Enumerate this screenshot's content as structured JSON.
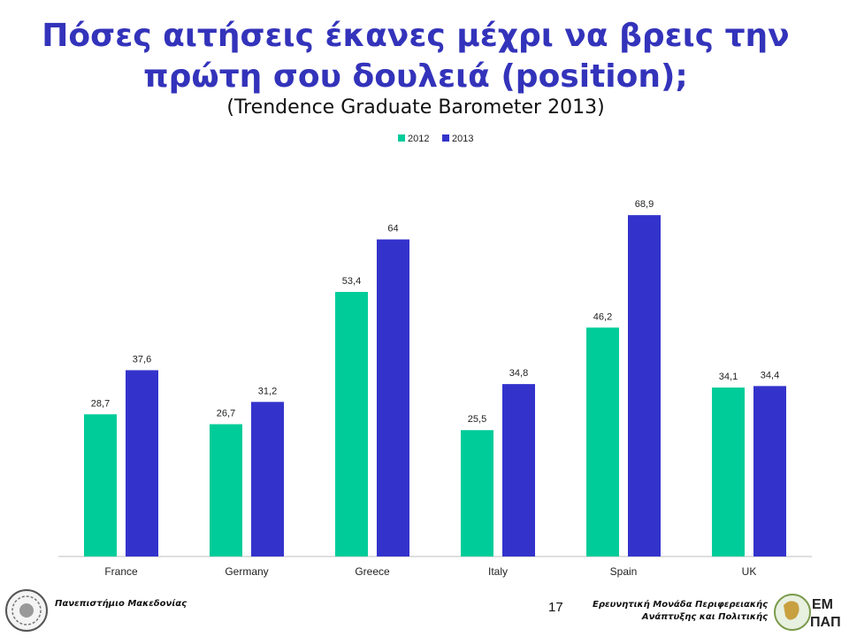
{
  "slide": {
    "title_line1": "Πόσες αιτήσεις έκανες μέχρι να βρεις την",
    "title_line2": "πρώτη σου δουλειά (position);",
    "subtitle": "(Trendence Graduate Barometer 2013)",
    "page_number": "17",
    "footer_left": "Πανεπιστήμιο Μακεδονίας",
    "footer_right_line1": "Ερευνητική Μονάδα Περιφερειακής",
    "footer_right_line2": "Ανάπτυξης και Πολιτικής",
    "logo_text": "ΕΜ ΠΑΠ"
  },
  "chart_data": {
    "type": "bar",
    "categories": [
      "France",
      "Germany",
      "Greece",
      "Italy",
      "Spain",
      "UK"
    ],
    "series": [
      {
        "name": "2012",
        "color": "#00cc99",
        "values": [
          28.7,
          26.7,
          53.4,
          25.5,
          46.2,
          34.1
        ],
        "labels": [
          "28,7",
          "26,7",
          "53,4",
          "25,5",
          "46,2",
          "34,1"
        ]
      },
      {
        "name": "2013",
        "color": "#3333cc",
        "values": [
          37.6,
          31.2,
          64,
          34.8,
          68.9,
          34.4
        ],
        "labels": [
          "37,6",
          "31,2",
          "64",
          "34,8",
          "68,9",
          "34,4"
        ]
      }
    ],
    "ylim": [
      0,
      75
    ],
    "legend": "top-center",
    "grid": false
  }
}
